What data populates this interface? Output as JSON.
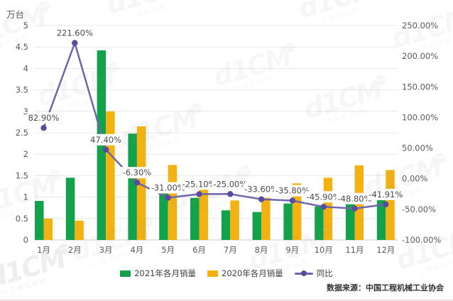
{
  "chart_data": {
    "type": "bar",
    "overlay": "line",
    "title": "",
    "unit_label": "万台",
    "categories": [
      "1月",
      "2月",
      "3月",
      "4月",
      "5月",
      "6月",
      "7月",
      "8月",
      "9月",
      "10月",
      "11月",
      "12月"
    ],
    "series": [
      {
        "name": "2021年各月销量",
        "kind": "bar",
        "axis": "left",
        "color": "#12a24b",
        "values": [
          0.91,
          1.45,
          4.42,
          2.48,
          1.21,
          0.98,
          0.69,
          0.65,
          0.85,
          0.78,
          0.89,
          0.95
        ]
      },
      {
        "name": "2020年各月销量",
        "kind": "bar",
        "axis": "left",
        "color": "#f3b211",
        "values": [
          0.5,
          0.45,
          3.0,
          2.65,
          1.75,
          1.31,
          0.92,
          0.98,
          1.32,
          1.45,
          1.74,
          1.63
        ]
      },
      {
        "name": "同比",
        "kind": "line",
        "axis": "right",
        "color": "#6f65ad",
        "marker_color": "#574d9f",
        "values": [
          82.9,
          221.6,
          47.4,
          -6.3,
          -31.0,
          -25.1,
          -25.0,
          -33.6,
          -35.8,
          -45.9,
          -48.8,
          -41.91
        ],
        "labels": [
          "82.90%",
          "221.60%",
          "47.40%",
          "-6.30%",
          "-31.00%",
          "-25.10%",
          "-25.00%",
          "-33.60%",
          "-35.80%",
          "-45.90%",
          "-48.80%",
          "-41.91%"
        ]
      }
    ],
    "left_axis": {
      "min": 0,
      "max": 5,
      "step": 0.5,
      "ticks": [
        "5",
        "4.5",
        "4",
        "3.5",
        "3",
        "2.5",
        "2",
        "1.5",
        "1",
        "0.5",
        "0"
      ]
    },
    "right_axis": {
      "min": -100,
      "max": 250,
      "step": 50,
      "ticks": [
        "250.00%",
        "200.00%",
        "150.00%",
        "100.00%",
        "50.00%",
        "0.00%",
        "-50.00%",
        "-100.00%"
      ]
    },
    "grid": true,
    "legend_position": "bottom"
  },
  "footer": {
    "source": "数据来源：中国工程机械工业协会"
  },
  "watermark": {
    "brand": "d1CM",
    "badge": ".com",
    "subtext": "一工程机械网"
  }
}
